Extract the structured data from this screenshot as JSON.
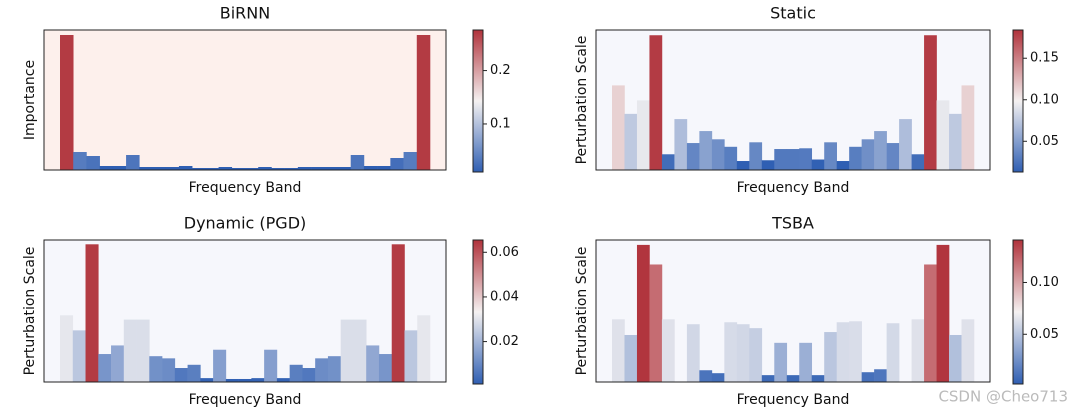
{
  "chart_data": [
    {
      "type": "bar",
      "title": "BiRNN",
      "ylabel": "Importance",
      "xlabel": "Frequency Band",
      "values": [
        0.27,
        0.036,
        0.028,
        0.008,
        0.008,
        0.03,
        0.006,
        0.006,
        0.006,
        0.008,
        0.004,
        0.004,
        0.006,
        0.004,
        0.004,
        0.006,
        0.004,
        0.004,
        0.006,
        0.006,
        0.006,
        0.006,
        0.03,
        0.008,
        0.008,
        0.024,
        0.036,
        0.27
      ],
      "ylim": [
        0,
        0.28
      ],
      "clim": [
        0.01,
        0.276
      ],
      "cticks": [
        0.1,
        0.2
      ],
      "colormap": [
        "#2f5fb3",
        "#f4f1f1",
        "#b0323b"
      ],
      "background": "#fdf0ec"
    },
    {
      "type": "bar",
      "title": "Static",
      "ylabel": "Perturbation Scale",
      "xlabel": "Frequency Band",
      "values": [
        0.113,
        0.075,
        0.093,
        0.18,
        0.021,
        0.068,
        0.036,
        0.052,
        0.041,
        0.031,
        0.012,
        0.037,
        0.013,
        0.028,
        0.028,
        0.029,
        0.014,
        0.037,
        0.012,
        0.031,
        0.041,
        0.052,
        0.036,
        0.068,
        0.021,
        0.18,
        0.093,
        0.075,
        0.113
      ],
      "ylim": [
        0,
        0.187
      ],
      "clim": [
        0.013,
        0.184
      ],
      "cticks": [
        0.05,
        {
          "value": 0.1,
          "label": "0.10"
        },
        0.15
      ],
      "colormap": [
        "#2f5fb3",
        "#f4f1f1",
        "#b0323b"
      ],
      "background": "#f6f7fc"
    },
    {
      "type": "bar",
      "title": "Dynamic (PGD)",
      "ylabel": "Perturbation Scale",
      "xlabel": "Frequency Band",
      "values": [
        0.031,
        0.024,
        0.064,
        0.013,
        0.017,
        0.029,
        0.029,
        0.012,
        0.011,
        0.0065,
        0.008,
        0.0018,
        0.015,
        0.0014,
        0.0014,
        0.0018,
        0.015,
        0.0018,
        0.008,
        0.0065,
        0.011,
        0.012,
        0.029,
        0.029,
        0.017,
        0.013,
        0.064,
        0.024,
        0.031
      ],
      "ylim": [
        0,
        0.066
      ],
      "clim": [
        0.001,
        0.0655
      ],
      "cticks": [
        0.02,
        0.04,
        0.06
      ],
      "colormap": [
        "#2f5fb3",
        "#f4f1f1",
        "#b0323b"
      ],
      "background": "#f6f7fc"
    },
    {
      "type": "bar",
      "title": "TSBA",
      "ylabel": "Perturbation Scale",
      "xlabel": "Frequency Band",
      "values": [
        0.064,
        0.048,
        0.14,
        0.12,
        0.064,
        0,
        0.059,
        0.012,
        0.009,
        0.061,
        0.059,
        0.055,
        0.007,
        0.04,
        0.007,
        0.04,
        0.007,
        0.051,
        0.061,
        0.062,
        0.01,
        0.013,
        0.06,
        0,
        0.064,
        0.12,
        0.14,
        0.048,
        0.064
      ],
      "ylim": [
        0,
        0.145
      ],
      "clim": [
        0.002,
        0.141
      ],
      "cticks": [
        0.05,
        {
          "value": 0.1,
          "label": "0.10"
        }
      ],
      "colormap": [
        "#2f5fb3",
        "#f4f1f1",
        "#b0323b"
      ],
      "background": "#f6f7fc"
    }
  ],
  "watermark": "CSDN @Cheo713"
}
